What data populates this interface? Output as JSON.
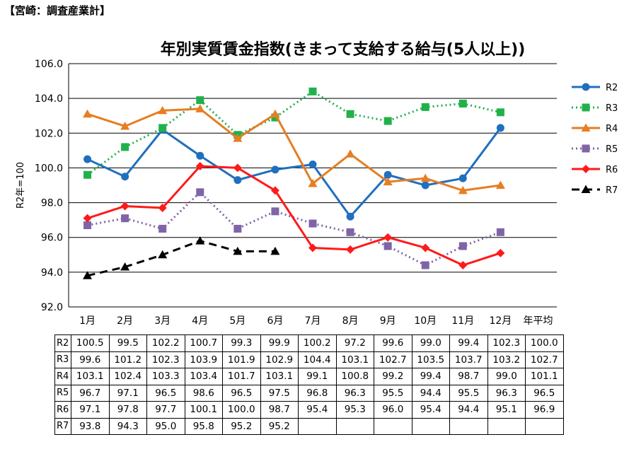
{
  "header": {
    "label": "【宮崎：調査産業計】"
  },
  "chart_data": {
    "type": "line",
    "title": "年別実質賃金指数(きまって支給する給与(5人以上))",
    "ylabel": "R2年=100",
    "xlabel": "",
    "ylim": [
      92.0,
      106.0
    ],
    "yticks": [
      "92.0",
      "94.0",
      "96.0",
      "98.0",
      "100.0",
      "102.0",
      "104.0",
      "106.0"
    ],
    "ytick_values": [
      92,
      94,
      96,
      98,
      100,
      102,
      104,
      106
    ],
    "categories": [
      "1月",
      "2月",
      "3月",
      "4月",
      "5月",
      "6月",
      "7月",
      "8月",
      "9月",
      "10月",
      "11月",
      "12月",
      "年平均"
    ],
    "grid": true,
    "legend_position": "right",
    "series": [
      {
        "name": "R2",
        "color": "#1f6fbf",
        "dash": "solid",
        "marker": "circle",
        "values": [
          100.5,
          99.5,
          102.2,
          100.7,
          99.3,
          99.9,
          100.2,
          97.2,
          99.6,
          99.0,
          99.4,
          102.3,
          100.0
        ],
        "labels": [
          "100.5",
          "99.5",
          "102.2",
          "100.7",
          "99.3",
          "99.9",
          "100.2",
          "97.2",
          "99.6",
          "99.0",
          "99.4",
          "102.3",
          "100.0"
        ]
      },
      {
        "name": "R3",
        "color": "#21b14b",
        "dash": "dot",
        "marker": "square",
        "values": [
          99.6,
          101.2,
          102.3,
          103.9,
          101.9,
          102.9,
          104.4,
          103.1,
          102.7,
          103.5,
          103.7,
          103.2,
          102.7
        ],
        "labels": [
          "99.6",
          "101.2",
          "102.3",
          "103.9",
          "101.9",
          "102.9",
          "104.4",
          "103.1",
          "102.7",
          "103.5",
          "103.7",
          "103.2",
          "102.7"
        ]
      },
      {
        "name": "R4",
        "color": "#e67e22",
        "dash": "solid",
        "marker": "triangle",
        "values": [
          103.1,
          102.4,
          103.3,
          103.4,
          101.7,
          103.1,
          99.1,
          100.8,
          99.2,
          99.4,
          98.7,
          99.0,
          101.1
        ],
        "labels": [
          "103.1",
          "102.4",
          "103.3",
          "103.4",
          "101.7",
          "103.1",
          "99.1",
          "100.8",
          "99.2",
          "99.4",
          "98.7",
          "99.0",
          "101.1"
        ]
      },
      {
        "name": "R5",
        "color": "#7f64a6",
        "dash": "dot",
        "marker": "square",
        "values": [
          96.7,
          97.1,
          96.5,
          98.6,
          96.5,
          97.5,
          96.8,
          96.3,
          95.5,
          94.4,
          95.5,
          96.3,
          96.5
        ],
        "labels": [
          "96.7",
          "97.1",
          "96.5",
          "98.6",
          "96.5",
          "97.5",
          "96.8",
          "96.3",
          "95.5",
          "94.4",
          "95.5",
          "96.3",
          "96.5"
        ]
      },
      {
        "name": "R6",
        "color": "#ff1a1a",
        "dash": "solid",
        "marker": "diamond",
        "values": [
          97.1,
          97.8,
          97.7,
          100.1,
          100.0,
          98.7,
          95.4,
          95.3,
          96.0,
          95.4,
          94.4,
          95.1,
          96.9
        ],
        "labels": [
          "97.1",
          "97.8",
          "97.7",
          "100.1",
          "100.0",
          "98.7",
          "95.4",
          "95.3",
          "96.0",
          "95.4",
          "94.4",
          "95.1",
          "96.9"
        ]
      },
      {
        "name": "R7",
        "color": "#000000",
        "dash": "dash",
        "marker": "triangle",
        "values": [
          93.8,
          94.3,
          95.0,
          95.8,
          95.2,
          95.2,
          null,
          null,
          null,
          null,
          null,
          null,
          null
        ],
        "labels": [
          "93.8",
          "94.3",
          "95.0",
          "95.8",
          "95.2",
          "95.2",
          "",
          "",
          "",
          "",
          "",
          "",
          ""
        ]
      }
    ]
  }
}
